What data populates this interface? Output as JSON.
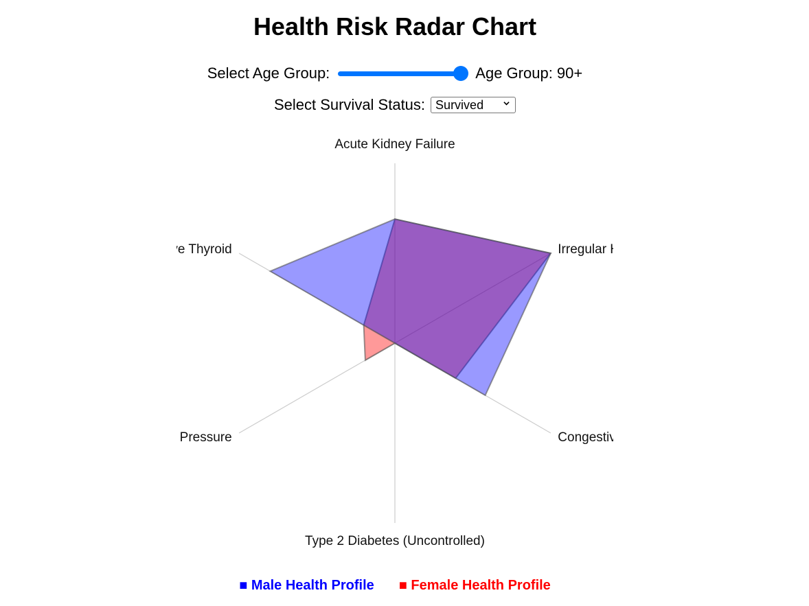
{
  "title": "Health Risk Radar Chart",
  "controls": {
    "age_label": "Select Age Group:",
    "age_value_text": "Age Group: 90+",
    "age_slider_fraction": 1.0,
    "status_label": "Select Survival Status:",
    "status_value": "Survived",
    "slider_color": "#0075ff"
  },
  "chart_data": {
    "type": "radar",
    "axes": [
      "Acute Kidney Failure",
      "Irregular Heartbeat",
      "Congestive Heart Failure",
      "Type 2 Diabetes (Uncontrolled)",
      "High Blood Pressure",
      "Underactive Thyroid"
    ],
    "axis_display": [
      "Acute Kidney Failure",
      "Irregular Heartbe",
      "Congestive Heart Fa",
      "Type 2 Diabetes (Uncontrolled)",
      "gh Blood Pressure",
      "nderactive Thyroid"
    ],
    "rmax": 1.0,
    "series": [
      {
        "name": "Male Health Profile",
        "color": "#0000ff",
        "values": [
          0.69,
          1.0,
          0.58,
          0.0,
          0.0,
          0.8
        ]
      },
      {
        "name": "Female Health Profile",
        "color": "#ff0000",
        "values": [
          0.69,
          1.0,
          0.39,
          0.0,
          0.19,
          0.2
        ]
      }
    ],
    "legend_position": "bottom"
  },
  "legend": {
    "male": "■ Male Health Profile",
    "female": "■ Female Health Profile"
  }
}
